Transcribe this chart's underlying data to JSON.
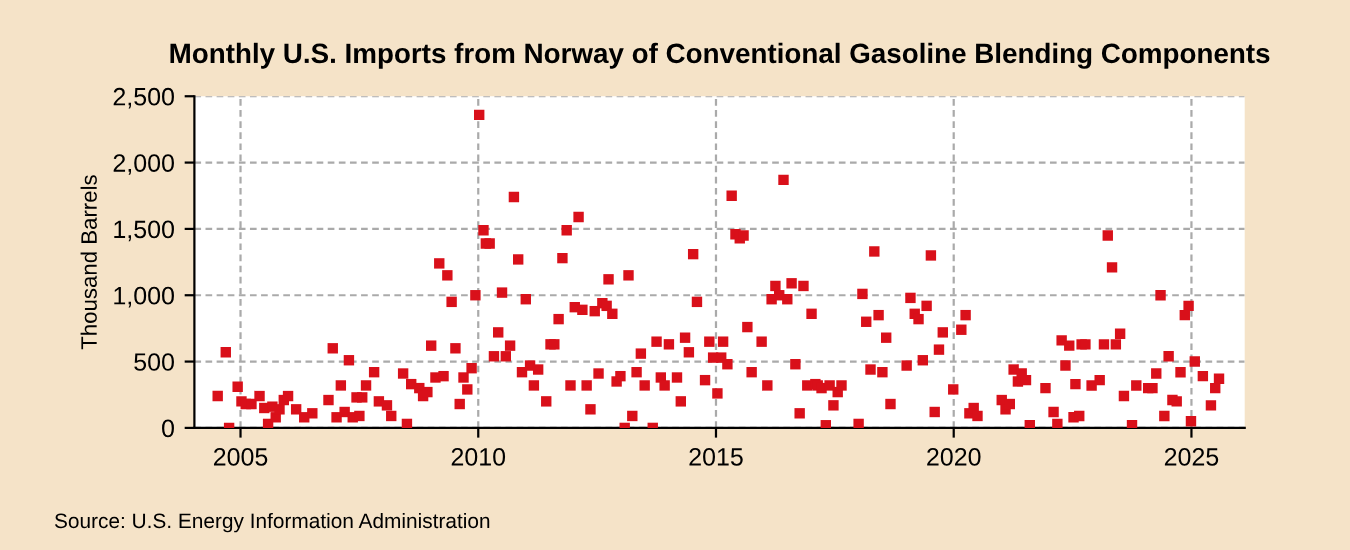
{
  "chart_data": {
    "type": "scatter",
    "title": "Monthly U.S. Imports from Norway of Conventional Gasoline Blending Components",
    "ylabel": "Thousand Barrels",
    "annotations": [
      "Source: U.S. Energy Information Administration"
    ],
    "marker": "square",
    "grid": true,
    "xlim": [
      2004.03,
      2026.12
    ],
    "xticks": [
      2005,
      2010,
      2015,
      2020,
      2025
    ],
    "ylim": [
      0,
      2500
    ],
    "yticks": [
      0,
      {
        "value": 500,
        "label": "500"
      },
      {
        "value": 1000,
        "label": "1,000"
      },
      {
        "value": 1500,
        "label": "1,500"
      },
      {
        "value": 2000,
        "label": "2,000"
      },
      {
        "value": 2500,
        "label": "2,500"
      }
    ],
    "series": [
      {
        "color": "#d9101a",
        "x": [
          2004.52,
          2004.69,
          2004.76,
          2004.94,
          2005.02,
          2005.11,
          2005.23,
          2005.4,
          2005.5,
          2005.58,
          2005.67,
          2005.74,
          2005.82,
          2005.91,
          2006.0,
          2006.17,
          2006.34,
          2006.51,
          2006.85,
          2006.94,
          2007.02,
          2007.11,
          2007.19,
          2007.28,
          2007.36,
          2007.44,
          2007.5,
          2007.56,
          2007.64,
          2007.81,
          2007.91,
          2008.08,
          2008.17,
          2008.42,
          2008.5,
          2008.59,
          2008.76,
          2008.84,
          2008.93,
          2009.01,
          2009.1,
          2009.18,
          2009.27,
          2009.35,
          2009.44,
          2009.52,
          2009.61,
          2009.69,
          2009.77,
          2009.86,
          2009.94,
          2010.02,
          2010.11,
          2010.16,
          2010.24,
          2010.33,
          2010.42,
          2010.5,
          2010.58,
          2010.67,
          2010.75,
          2010.84,
          2010.92,
          2011.0,
          2011.09,
          2011.17,
          2011.26,
          2011.43,
          2011.52,
          2011.6,
          2011.69,
          2011.77,
          2011.86,
          2011.94,
          2012.03,
          2012.11,
          2012.19,
          2012.28,
          2012.36,
          2012.45,
          2012.53,
          2012.61,
          2012.7,
          2012.74,
          2012.82,
          2012.91,
          2012.99,
          2013.08,
          2013.16,
          2013.24,
          2013.33,
          2013.42,
          2013.5,
          2013.67,
          2013.75,
          2013.84,
          2013.92,
          2014.01,
          2014.18,
          2014.26,
          2014.35,
          2014.43,
          2014.52,
          2014.6,
          2014.77,
          2014.86,
          2014.94,
          2015.03,
          2015.11,
          2015.15,
          2015.24,
          2015.33,
          2015.41,
          2015.5,
          2015.58,
          2015.66,
          2015.75,
          2015.96,
          2016.08,
          2016.17,
          2016.25,
          2016.33,
          2016.42,
          2016.5,
          2016.59,
          2016.67,
          2016.76,
          2016.84,
          2016.92,
          2017.01,
          2017.09,
          2017.14,
          2017.22,
          2017.31,
          2017.39,
          2017.47,
          2017.56,
          2017.64,
          2018.0,
          2018.08,
          2018.16,
          2018.25,
          2018.33,
          2018.42,
          2018.5,
          2018.58,
          2018.67,
          2019.01,
          2019.09,
          2019.18,
          2019.26,
          2019.35,
          2019.43,
          2019.52,
          2019.6,
          2019.69,
          2019.77,
          2019.99,
          2020.16,
          2020.25,
          2020.33,
          2020.42,
          2020.5,
          2021.01,
          2021.09,
          2021.18,
          2021.26,
          2021.35,
          2021.43,
          2021.52,
          2021.6,
          2021.93,
          2022.1,
          2022.18,
          2022.27,
          2022.35,
          2022.43,
          2022.52,
          2022.56,
          2022.64,
          2022.69,
          2022.77,
          2022.9,
          2023.07,
          2023.16,
          2023.24,
          2023.33,
          2023.41,
          2023.5,
          2023.58,
          2023.75,
          2023.84,
          2024.09,
          2024.18,
          2024.26,
          2024.35,
          2024.43,
          2024.52,
          2024.6,
          2024.69,
          2024.77,
          2024.86,
          2024.94,
          2024.99,
          2025.07,
          2025.24,
          2025.41,
          2025.5,
          2025.58
        ],
        "values": [
          240,
          570,
          0,
          310,
          200,
          180,
          180,
          240,
          150,
          30,
          160,
          80,
          140,
          210,
          240,
          140,
          80,
          110,
          210,
          600,
          80,
          320,
          120,
          510,
          80,
          230,
          90,
          230,
          320,
          420,
          200,
          170,
          90,
          410,
          30,
          330,
          300,
          240,
          270,
          620,
          380,
          1240,
          390,
          1150,
          950,
          600,
          180,
          380,
          290,
          450,
          1000,
          2360,
          1490,
          1390,
          1390,
          540,
          720,
          1020,
          540,
          620,
          1740,
          1270,
          420,
          970,
          470,
          320,
          440,
          200,
          630,
          630,
          820,
          1280,
          1490,
          320,
          910,
          1590,
          890,
          320,
          140,
          880,
          410,
          940,
          920,
          1120,
          860,
          350,
          390,
          0,
          1150,
          90,
          420,
          560,
          320,
          0,
          650,
          380,
          320,
          630,
          380,
          200,
          680,
          570,
          1310,
          950,
          360,
          650,
          530,
          260,
          530,
          650,
          480,
          1750,
          1460,
          1430,
          1450,
          760,
          420,
          650,
          320,
          970,
          1070,
          1000,
          1870,
          970,
          1090,
          480,
          110,
          1070,
          320,
          860,
          330,
          320,
          300,
          20,
          320,
          170,
          270,
          320,
          30,
          1010,
          800,
          440,
          1330,
          850,
          420,
          680,
          180,
          470,
          980,
          860,
          820,
          510,
          920,
          1300,
          120,
          590,
          720,
          290,
          740,
          850,
          110,
          150,
          90,
          210,
          140,
          180,
          440,
          350,
          410,
          360,
          20,
          300,
          120,
          30,
          660,
          470,
          620,
          80,
          330,
          90,
          630,
          630,
          320,
          360,
          630,
          1450,
          1210,
          630,
          710,
          240,
          20,
          320,
          300,
          300,
          410,
          1000,
          90,
          540,
          210,
          200,
          420,
          850,
          920,
          50,
          500,
          390,
          170,
          300,
          370
        ]
      }
    ]
  }
}
